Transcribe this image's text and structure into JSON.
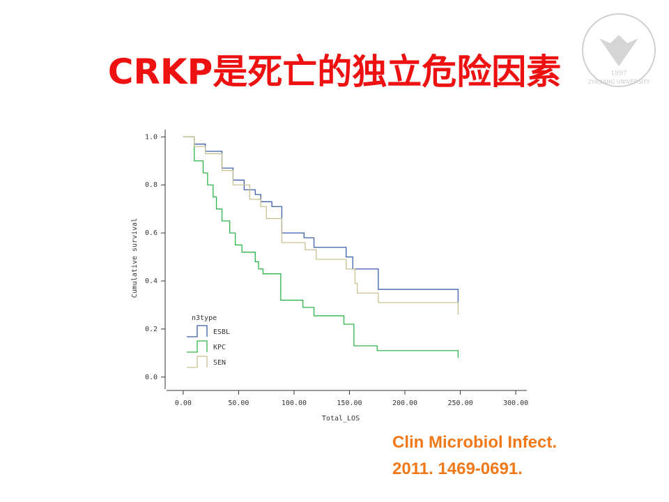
{
  "title": "CRKP是死亡的独立危险因素",
  "citation": [
    "Clin Microbiol Infect.",
    "2011. 1469-0691."
  ],
  "logo": {
    "year": "1897",
    "name": "ZHEJIANG UNIVERSITY"
  },
  "chart_data": {
    "type": "line",
    "step": true,
    "xlabel": "Total_LOS",
    "ylabel": "Cumulative survival",
    "legend_title": "n3type",
    "legend": "lower left",
    "xlim": [
      -15,
      310
    ],
    "ylim": [
      -0.05,
      1.03
    ],
    "xticks": [
      {
        "value": 0,
        "label": "0.00"
      },
      {
        "value": 50,
        "label": "50.00"
      },
      {
        "value": 100,
        "label": "100.00"
      },
      {
        "value": 150,
        "label": "150.00"
      },
      {
        "value": 200,
        "label": "200.00"
      },
      {
        "value": 250,
        "label": "250.00"
      },
      {
        "value": 300,
        "label": "300.00"
      }
    ],
    "yticks": [
      {
        "value": 0,
        "label": "0.0"
      },
      {
        "value": 0.2,
        "label": "0.2"
      },
      {
        "value": 0.4,
        "label": "0.4"
      },
      {
        "value": 0.6,
        "label": "0.6"
      },
      {
        "value": 0.8,
        "label": "0.8"
      },
      {
        "value": 1,
        "label": "1.0"
      }
    ],
    "series": [
      {
        "name": "ESBL",
        "color": "#3a5fa8",
        "x": [
          0,
          10,
          20,
          35,
          45,
          55,
          65,
          70,
          80,
          89,
          109,
          118,
          147,
          153,
          176,
          248
        ],
        "values": [
          1,
          0.97,
          0.94,
          0.87,
          0.82,
          0.78,
          0.76,
          0.73,
          0.71,
          0.6,
          0.58,
          0.54,
          0.5,
          0.45,
          0.365,
          0.31
        ]
      },
      {
        "name": "KPC",
        "color": "#2db34a",
        "x": [
          0,
          10,
          18,
          22,
          27,
          30,
          35,
          42,
          47,
          53,
          65,
          68,
          72,
          88,
          108,
          118,
          145,
          154,
          175,
          248
        ],
        "values": [
          1,
          0.9,
          0.85,
          0.8,
          0.75,
          0.7,
          0.65,
          0.6,
          0.55,
          0.52,
          0.48,
          0.45,
          0.43,
          0.32,
          0.29,
          0.255,
          0.22,
          0.13,
          0.11,
          0.08
        ]
      },
      {
        "name": "SEN",
        "color": "#c8c090",
        "x": [
          0,
          10,
          20,
          35,
          45,
          60,
          70,
          75,
          89,
          110,
          120,
          147,
          155,
          157,
          176,
          248
        ],
        "values": [
          1,
          0.96,
          0.93,
          0.86,
          0.8,
          0.74,
          0.71,
          0.66,
          0.56,
          0.53,
          0.49,
          0.45,
          0.39,
          0.35,
          0.31,
          0.26
        ]
      }
    ]
  }
}
